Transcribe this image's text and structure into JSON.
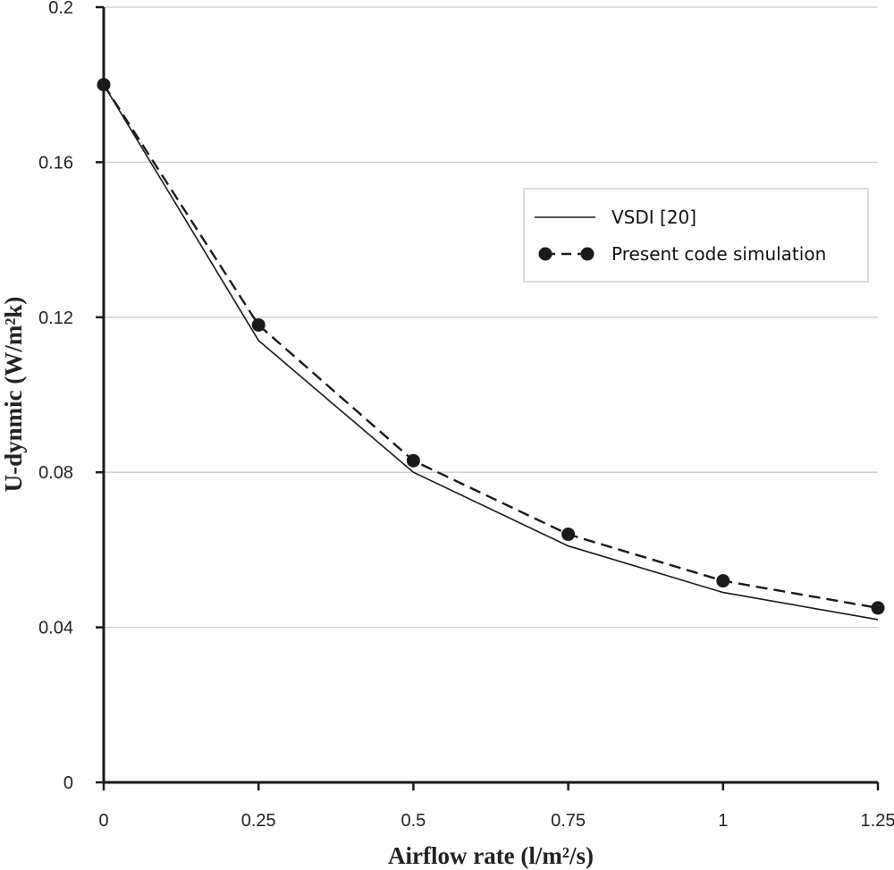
{
  "chart_data": {
    "type": "line",
    "title": "",
    "xlabel": "Airflow rate (l/m²/s)",
    "ylabel": "U-dynmic (W/m²k)",
    "xlim": [
      0,
      1.25
    ],
    "ylim": [
      0,
      0.2
    ],
    "x_ticks": [
      0,
      0.25,
      0.5,
      0.75,
      1,
      1.25
    ],
    "x_tick_labels": [
      "0",
      "0.25",
      "0.5",
      "0.75",
      "1",
      "1.25"
    ],
    "y_ticks": [
      0,
      0.04,
      0.08,
      0.12,
      0.16,
      0.2
    ],
    "y_tick_labels": [
      "0",
      "0.04",
      "0.08",
      "0.12",
      "0.16",
      "0.2"
    ],
    "grid": "horizontal",
    "legend_position": "top-right",
    "series": [
      {
        "name": "VSDI [20]",
        "style": "solid",
        "markers": false,
        "color": "#1a1a1a",
        "x": [
          0,
          0.25,
          0.5,
          0.75,
          1,
          1.25
        ],
        "values": [
          0.18,
          0.114,
          0.08,
          0.061,
          0.049,
          0.042
        ]
      },
      {
        "name": "Present code simulation",
        "style": "dashed",
        "markers": true,
        "color": "#1a1a1a",
        "x": [
          0,
          0.25,
          0.5,
          0.75,
          1,
          1.25
        ],
        "values": [
          0.18,
          0.118,
          0.083,
          0.064,
          0.052,
          0.045
        ]
      }
    ]
  }
}
